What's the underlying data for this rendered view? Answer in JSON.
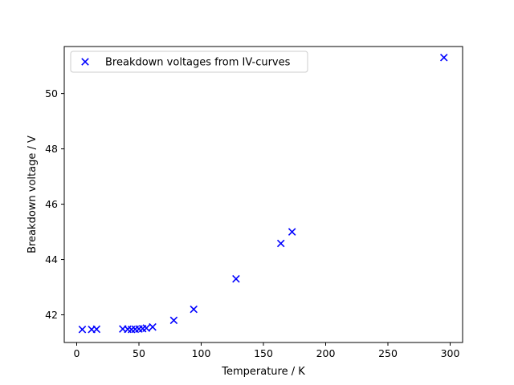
{
  "chart_data": {
    "type": "scatter",
    "title": "",
    "xlabel": "Temperature / K",
    "ylabel": "Breakdown voltage / V",
    "xlim": [
      -10,
      310
    ],
    "ylim": [
      41.0,
      51.7
    ],
    "xticks": [
      0,
      50,
      100,
      150,
      200,
      250,
      300
    ],
    "yticks": [
      42,
      44,
      46,
      48,
      50
    ],
    "grid": false,
    "legend_position": "top-left",
    "series": [
      {
        "name": "Breakdown voltages from IV-curves",
        "marker": "x",
        "color": "#0000ff",
        "points": [
          {
            "x": 4.5,
            "y": 41.47
          },
          {
            "x": 12,
            "y": 41.47
          },
          {
            "x": 16,
            "y": 41.48
          },
          {
            "x": 37,
            "y": 41.49
          },
          {
            "x": 41,
            "y": 41.48
          },
          {
            "x": 44,
            "y": 41.47
          },
          {
            "x": 47,
            "y": 41.48
          },
          {
            "x": 50,
            "y": 41.49
          },
          {
            "x": 53,
            "y": 41.5
          },
          {
            "x": 56,
            "y": 41.52
          },
          {
            "x": 61,
            "y": 41.56
          },
          {
            "x": 78,
            "y": 41.8
          },
          {
            "x": 94,
            "y": 42.2
          },
          {
            "x": 128,
            "y": 43.3
          },
          {
            "x": 164,
            "y": 44.58
          },
          {
            "x": 173,
            "y": 45.0
          },
          {
            "x": 295,
            "y": 51.3
          }
        ]
      }
    ]
  }
}
